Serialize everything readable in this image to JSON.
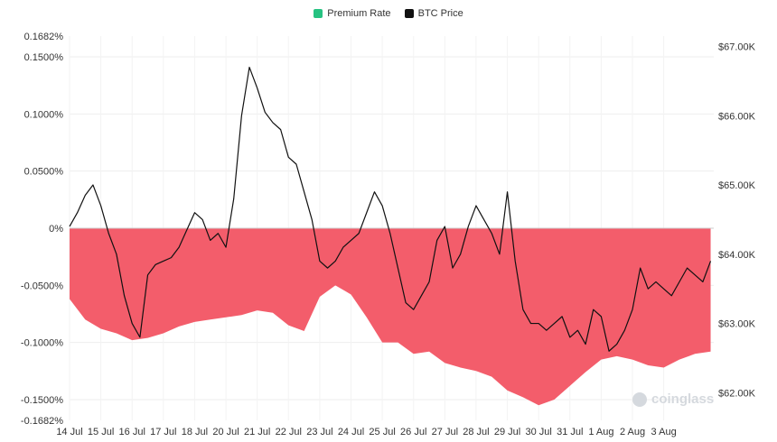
{
  "legend": {
    "items": [
      {
        "label": "Premium Rate",
        "color": "#26c281"
      },
      {
        "label": "BTC Price",
        "color": "#111111"
      }
    ]
  },
  "watermark": "coinglass",
  "chart_data": {
    "type": "area",
    "title": "",
    "x_ticks": [
      "14 Jul",
      "15 Jul",
      "16 Jul",
      "17 Jul",
      "18 Jul",
      "20 Jul",
      "21 Jul",
      "22 Jul",
      "23 Jul",
      "24 Jul",
      "25 Jul",
      "26 Jul",
      "27 Jul",
      "28 Jul",
      "29 Jul",
      "30 Jul",
      "31 Jul",
      "1 Aug",
      "2 Aug",
      "3 Aug"
    ],
    "y_left": {
      "label": "",
      "ticks": [
        {
          "value": 0.1682,
          "label": "0.1682%"
        },
        {
          "value": 0.15,
          "label": "0.1500%"
        },
        {
          "value": 0.1,
          "label": "0.1000%"
        },
        {
          "value": 0.05,
          "label": "0.0500%"
        },
        {
          "value": 0.0,
          "label": "0%"
        },
        {
          "value": -0.05,
          "label": "-0.0500%"
        },
        {
          "value": -0.1,
          "label": "-0.1000%"
        },
        {
          "value": -0.15,
          "label": "-0.1500%"
        },
        {
          "value": -0.1682,
          "label": "-0.1682%"
        }
      ],
      "range": [
        -0.1682,
        0.1682
      ]
    },
    "y_right": {
      "label": "",
      "ticks": [
        {
          "value": 62000,
          "label": "$62.00K"
        },
        {
          "value": 63000,
          "label": "$63.00K"
        },
        {
          "value": 64000,
          "label": "$64.00K"
        },
        {
          "value": 65000,
          "label": "$65.00K"
        },
        {
          "value": 66000,
          "label": "$66.00K"
        },
        {
          "value": 67000,
          "label": "$67.00K"
        }
      ],
      "range": [
        61600,
        67150
      ]
    },
    "series": [
      {
        "name": "Premium Rate",
        "color": "#f35d6b",
        "x": [
          0,
          0.5,
          1,
          1.5,
          2,
          2.5,
          3,
          3.5,
          4,
          4.5,
          5,
          5.5,
          6,
          6.5,
          7,
          7.5,
          8,
          8.5,
          9,
          9.5,
          10,
          10.5,
          11,
          11.5,
          12,
          12.5,
          13,
          13.5,
          14,
          14.5,
          15,
          15.5,
          16,
          16.5,
          17,
          17.5,
          18,
          18.5,
          19,
          19.5,
          20,
          20.5
        ],
        "values": [
          -0.062,
          -0.08,
          -0.088,
          -0.092,
          -0.098,
          -0.096,
          -0.092,
          -0.086,
          -0.082,
          -0.08,
          -0.078,
          -0.076,
          -0.072,
          -0.074,
          -0.085,
          -0.09,
          -0.06,
          -0.05,
          -0.058,
          -0.078,
          -0.1,
          -0.1,
          -0.11,
          -0.108,
          -0.118,
          -0.122,
          -0.125,
          -0.13,
          -0.142,
          -0.148,
          -0.155,
          -0.15,
          -0.138,
          -0.126,
          -0.115,
          -0.112,
          -0.115,
          -0.12,
          -0.122,
          -0.115,
          -0.11,
          -0.108
        ]
      },
      {
        "name": "BTC Price",
        "color": "#111111",
        "x": [
          0,
          0.25,
          0.5,
          0.75,
          1,
          1.25,
          1.5,
          1.75,
          2,
          2.25,
          2.5,
          2.75,
          3,
          3.25,
          3.5,
          3.75,
          4,
          4.25,
          4.5,
          4.75,
          5,
          5.25,
          5.5,
          5.75,
          6,
          6.25,
          6.5,
          6.75,
          7,
          7.25,
          7.5,
          7.75,
          8,
          8.25,
          8.5,
          8.75,
          9,
          9.25,
          9.5,
          9.75,
          10,
          10.25,
          10.5,
          10.75,
          11,
          11.25,
          11.5,
          11.75,
          12,
          12.25,
          12.5,
          12.75,
          13,
          13.25,
          13.5,
          13.75,
          14,
          14.25,
          14.5,
          14.75,
          15,
          15.25,
          15.5,
          15.75,
          16,
          16.25,
          16.5,
          16.75,
          17,
          17.25,
          17.5,
          17.75,
          18,
          18.25,
          18.5,
          18.75,
          19,
          19.25,
          19.5,
          19.75,
          20,
          20.25,
          20.5
        ],
        "values": [
          64400,
          64600,
          64850,
          65000,
          64700,
          64300,
          64000,
          63400,
          63000,
          62800,
          63700,
          63850,
          63900,
          63950,
          64100,
          64350,
          64600,
          64500,
          64200,
          64300,
          64100,
          64800,
          66000,
          66700,
          66400,
          66050,
          65900,
          65800,
          65400,
          65300,
          64900,
          64500,
          63900,
          63800,
          63900,
          64100,
          64200,
          64300,
          64600,
          64900,
          64700,
          64300,
          63800,
          63300,
          63200,
          63400,
          63600,
          64200,
          64400,
          63800,
          64000,
          64400,
          64700,
          64500,
          64300,
          64000,
          64900,
          63900,
          63200,
          63000,
          63000,
          62900,
          63000,
          63100,
          62800,
          62900,
          62700,
          63200,
          63100,
          62600,
          62700,
          62900,
          63200,
          63800,
          63500,
          63600,
          63500,
          63400,
          63600,
          63800,
          63700,
          63600,
          63900
        ]
      }
    ],
    "grid": true,
    "zero_line": true,
    "legend_position": "top-center"
  }
}
